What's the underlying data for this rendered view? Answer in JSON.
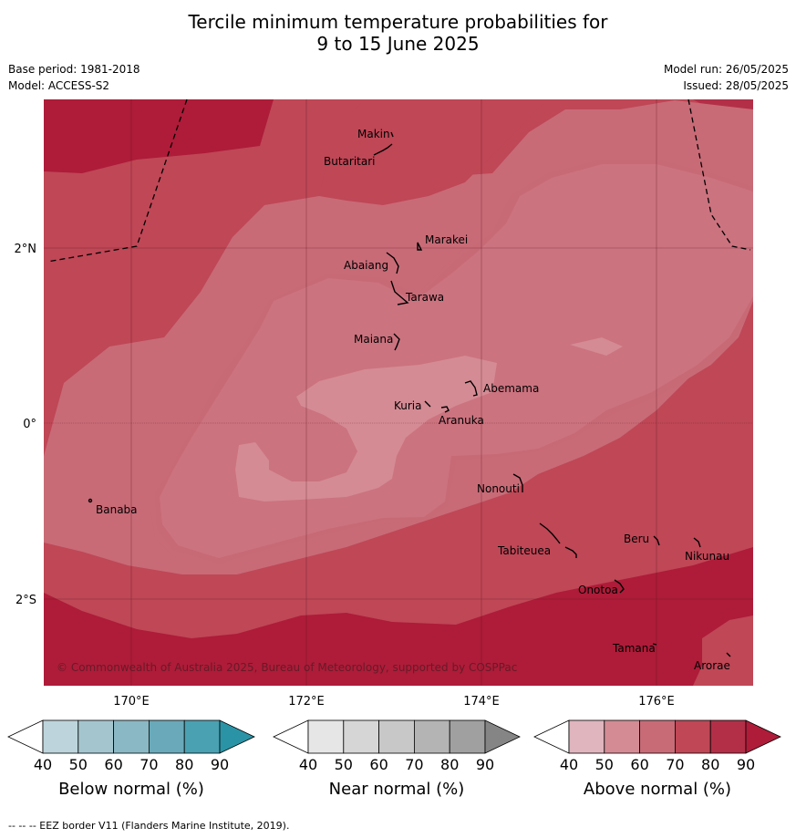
{
  "title": {
    "line1": "Tercile minimum temperature probabilities for",
    "line2": "9 to 15 June 2025"
  },
  "meta": {
    "base_period": "Base period: 1981-2018",
    "model": "Model: ACCESS-S2",
    "model_run": "Model run: 26/05/2025",
    "issued": "Issued: 28/05/2025"
  },
  "map": {
    "lat_labels": [
      "2°N",
      "0°",
      "2°S"
    ],
    "lon_labels": [
      "170°E",
      "172°E",
      "174°E",
      "176°E"
    ],
    "copyright": "© Commonwealth of Australia 2025, Bureau of Meteorology, supported by COSPPac",
    "places": [
      {
        "name": "Makin"
      },
      {
        "name": "Butaritari"
      },
      {
        "name": "Marakei"
      },
      {
        "name": "Abaiang"
      },
      {
        "name": "Tarawa"
      },
      {
        "name": "Maiana"
      },
      {
        "name": "Abemama"
      },
      {
        "name": "Kuria"
      },
      {
        "name": "Aranuka"
      },
      {
        "name": "Banaba"
      },
      {
        "name": "Nonouti"
      },
      {
        "name": "Beru"
      },
      {
        "name": "Nikunau"
      },
      {
        "name": "Tabiteuea"
      },
      {
        "name": "Onotoa"
      },
      {
        "name": "Tamana"
      },
      {
        "name": "Arorae"
      }
    ],
    "colors": {
      "above_40": "#ffffff",
      "above_50": "#e0b5bd",
      "above_60": "#d48b94",
      "above_70": "#c86b77",
      "above_80": "#bf4756",
      "above_90": "#ae1c39"
    }
  },
  "legend": {
    "ticks": [
      "40",
      "50",
      "60",
      "70",
      "80",
      "90"
    ],
    "below": {
      "label": "Below normal (%)",
      "colors": [
        "#ffffff",
        "#bdd4dc",
        "#a4c5ce",
        "#8ab8c4",
        "#6aa9b9",
        "#4aa1b2",
        "#2a94a6"
      ]
    },
    "near": {
      "label": "Near normal (%)",
      "colors": [
        "#ffffff",
        "#e6e6e6",
        "#d6d6d6",
        "#c8c8c8",
        "#b4b4b4",
        "#a0a0a0",
        "#858585"
      ]
    },
    "above": {
      "label": "Above normal (%)",
      "colors": [
        "#ffffff",
        "#e0b5bd",
        "#d48b94",
        "#c86b77",
        "#bf4756",
        "#b32f48",
        "#ae1c39"
      ]
    }
  },
  "footnote": "--  --  -- EEZ border V11 (Flanders Marine Institute, 2019)."
}
